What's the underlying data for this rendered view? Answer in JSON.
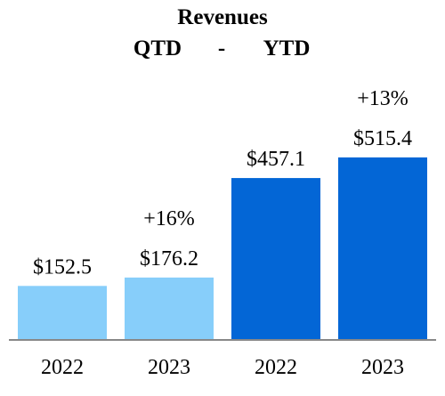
{
  "chart_data": {
    "type": "bar",
    "title": "Revenues",
    "subtitle": "QTD - YTD",
    "subtitle_left": "QTD",
    "subtitle_sep": "-",
    "subtitle_right": "YTD",
    "categories": [
      "2022",
      "2023",
      "2022",
      "2023"
    ],
    "values": [
      152.5,
      176.2,
      457.1,
      515.4
    ],
    "value_labels": [
      "$152.5",
      "$176.2",
      "$457.1",
      "$515.4"
    ],
    "groups": [
      {
        "period": "QTD",
        "growth_label": "+16%"
      },
      {
        "period": "YTD",
        "growth_label": "+13%"
      }
    ],
    "bar_colors": [
      "#87CEFA",
      "#87CEFA",
      "#0366D6",
      "#0366D6"
    ],
    "axis_color": "#888888",
    "ylim": [
      0,
      520
    ],
    "grid": false,
    "legend": "none"
  }
}
